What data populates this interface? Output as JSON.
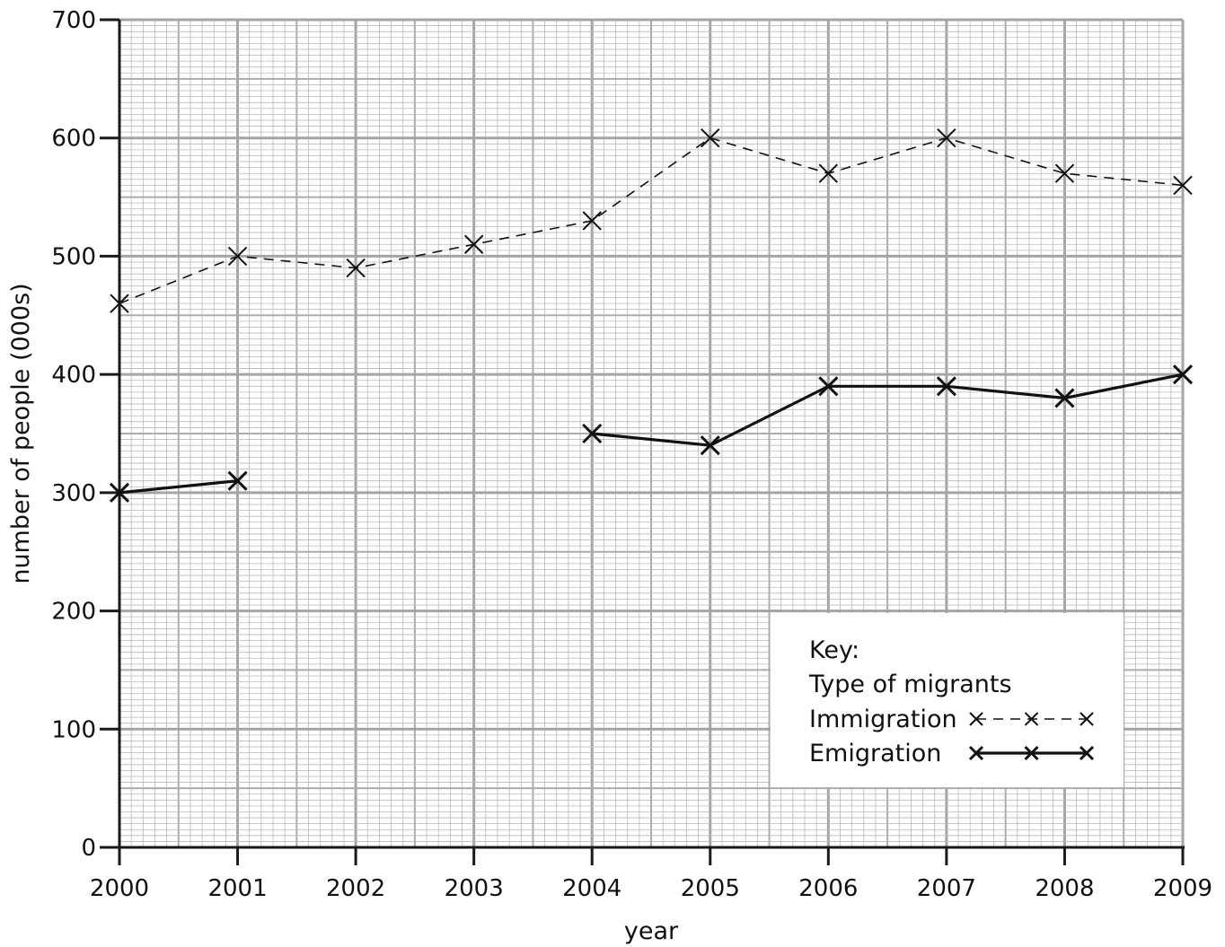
{
  "chart_data": {
    "type": "line",
    "title": "",
    "xlabel": "year",
    "ylabel": "number of people (000s)",
    "xlim": [
      2000,
      2009
    ],
    "ylim": [
      0,
      700
    ],
    "x_ticks": [
      "2000",
      "2001",
      "2002",
      "2003",
      "2004",
      "2005",
      "2006",
      "2007",
      "2008",
      "2009"
    ],
    "y_ticks": [
      "0",
      "100",
      "200",
      "300",
      "400",
      "500",
      "600",
      "700"
    ],
    "grid": true,
    "legend_position": "bottom-right",
    "key": {
      "heading": "Key:",
      "subheading": "Type of migrants"
    },
    "series": [
      {
        "name": "Immigration",
        "style": "dashed",
        "segments": [
          [
            {
              "x": 2000,
              "y": 460
            },
            {
              "x": 2001,
              "y": 500
            },
            {
              "x": 2002,
              "y": 490
            },
            {
              "x": 2003,
              "y": 510
            },
            {
              "x": 2004,
              "y": 530
            },
            {
              "x": 2005,
              "y": 600
            },
            {
              "x": 2006,
              "y": 570
            },
            {
              "x": 2007,
              "y": 600
            },
            {
              "x": 2008,
              "y": 570
            },
            {
              "x": 2009,
              "y": 560
            }
          ]
        ]
      },
      {
        "name": "Emigration",
        "style": "solid",
        "segments": [
          [
            {
              "x": 2000,
              "y": 300
            },
            {
              "x": 2001,
              "y": 310
            }
          ],
          [
            {
              "x": 2004,
              "y": 350
            },
            {
              "x": 2005,
              "y": 340
            },
            {
              "x": 2006,
              "y": 390
            },
            {
              "x": 2007,
              "y": 390
            },
            {
              "x": 2008,
              "y": 380
            },
            {
              "x": 2009,
              "y": 400
            }
          ]
        ]
      }
    ]
  }
}
